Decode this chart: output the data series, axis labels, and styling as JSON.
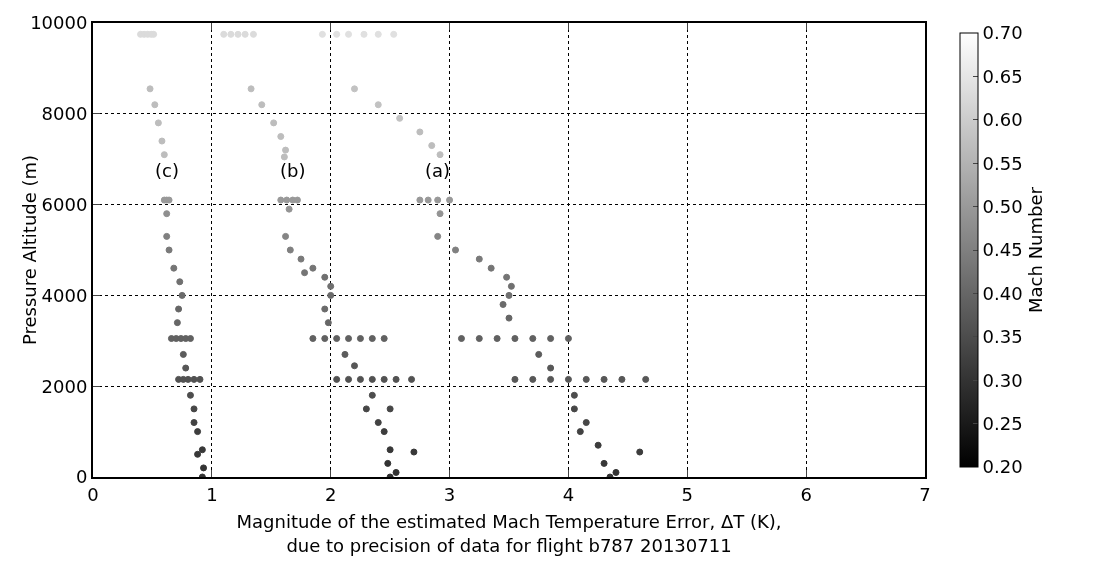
{
  "chart_data": {
    "type": "scatter",
    "xlabel": "Magnitude of the estimated Mach Temperature Error, ΔT (K),\ndue to precision of data for flight b787 20130711",
    "ylabel": "Pressure Altitude (m)",
    "clabel": "Mach Number",
    "xlim": [
      0,
      7
    ],
    "xticks": [
      0,
      1,
      2,
      3,
      4,
      5,
      6,
      7
    ],
    "ylim": [
      0,
      10000
    ],
    "yticks": [
      0,
      2000,
      4000,
      6000,
      8000,
      10000
    ],
    "clim": [
      0.2,
      0.7
    ],
    "cticks": [
      {
        "value": 0.2,
        "label": "0.20"
      },
      0.25,
      {
        "value": 0.3,
        "label": "0.30"
      },
      0.35,
      {
        "value": 0.4,
        "label": "0.40"
      },
      0.45,
      {
        "value": 0.5,
        "label": "0.50"
      },
      0.55,
      {
        "value": 0.6,
        "label": "0.60"
      },
      0.65,
      {
        "value": 0.7,
        "label": "0.70"
      }
    ],
    "grid": true,
    "marker": "circle",
    "annotations": [
      {
        "text": "(a)",
        "x": 2.9,
        "y": 6100
      },
      {
        "text": "(b)",
        "x": 1.68,
        "y": 6100
      },
      {
        "text": "(c)",
        "x": 0.62,
        "y": 6100
      }
    ],
    "series": [
      {
        "x": [
          1.93,
          2.05,
          2.15,
          2.28,
          2.4,
          2.53,
          2.2,
          2.4,
          2.58,
          2.75,
          2.85,
          2.92,
          2.75,
          2.82,
          2.9,
          3.0,
          2.92,
          2.9,
          3.05,
          3.25,
          3.35,
          3.48,
          3.52,
          3.5,
          3.45,
          3.5,
          3.1,
          3.25,
          3.4,
          3.55,
          3.7,
          3.85,
          4.0,
          3.75,
          3.85,
          3.55,
          3.7,
          3.85,
          4.0,
          4.15,
          4.3,
          4.45,
          4.65,
          4.05,
          4.05,
          4.15,
          4.1,
          4.25,
          4.6,
          4.3,
          4.4,
          4.35
        ],
        "values": [
          9750,
          9750,
          9750,
          9750,
          9750,
          9750,
          8550,
          8200,
          7900,
          7600,
          7300,
          7100,
          6100,
          6100,
          6100,
          6100,
          5800,
          5300,
          5000,
          4800,
          4600,
          4400,
          4200,
          4000,
          3800,
          3500,
          3050,
          3050,
          3050,
          3050,
          3050,
          3050,
          3050,
          2700,
          2400,
          2150,
          2150,
          2150,
          2150,
          2150,
          2150,
          2150,
          2150,
          1800,
          1500,
          1200,
          1000,
          700,
          550,
          300,
          100,
          0
        ],
        "colors": [
          "#e0e0e0",
          "#e0e0e0",
          "#e0e0e0",
          "#e0e0e0",
          "#e0e0e0",
          "#e0e0e0",
          "#c2c2c2",
          "#c2c2c2",
          "#c2c2c2",
          "#bdbdbd",
          "#bdbdbd",
          "#bdbdbd",
          "#999999",
          "#999999",
          "#999999",
          "#999999",
          "#949494",
          "#858585",
          "#808080",
          "#7a7a7a",
          "#757575",
          "#757575",
          "#707070",
          "#707070",
          "#6b6b6b",
          "#666666",
          "#616161",
          "#616161",
          "#616161",
          "#616161",
          "#616161",
          "#616161",
          "#616161",
          "#5c5c5c",
          "#575757",
          "#575757",
          "#575757",
          "#575757",
          "#575757",
          "#575757",
          "#575757",
          "#575757",
          "#575757",
          "#4d4d4d",
          "#474747",
          "#474747",
          "#424242",
          "#3d3d3d",
          "#3d3d3d",
          "#383838",
          "#333333",
          "#333333"
        ],
        "cvalues": [
          0.64,
          0.64,
          0.64,
          0.64,
          0.64,
          0.64,
          0.58,
          0.58,
          0.58,
          0.57,
          0.57,
          0.57,
          0.5,
          0.5,
          0.5,
          0.5,
          0.49,
          0.46,
          0.45,
          0.44,
          0.43,
          0.43,
          0.42,
          0.42,
          0.41,
          0.4,
          0.39,
          0.39,
          0.39,
          0.39,
          0.39,
          0.39,
          0.39,
          0.38,
          0.37,
          0.37,
          0.37,
          0.37,
          0.37,
          0.37,
          0.37,
          0.37,
          0.37,
          0.35,
          0.34,
          0.34,
          0.33,
          0.32,
          0.32,
          0.31,
          0.3,
          0.3
        ]
      },
      {
        "x": [
          1.1,
          1.16,
          1.22,
          1.28,
          1.35,
          1.33,
          1.42,
          1.52,
          1.58,
          1.62,
          1.61,
          1.58,
          1.63,
          1.68,
          1.72,
          1.65,
          1.62,
          1.66,
          1.75,
          1.85,
          1.78,
          1.95,
          2.0,
          2.0,
          1.95,
          1.98,
          1.85,
          1.95,
          2.05,
          2.15,
          2.25,
          2.35,
          2.45,
          2.12,
          2.2,
          2.05,
          2.15,
          2.25,
          2.35,
          2.45,
          2.55,
          2.68,
          2.35,
          2.3,
          2.5,
          2.4,
          2.45,
          2.5,
          2.7,
          2.48,
          2.55,
          2.5
        ],
        "values": [
          9750,
          9750,
          9750,
          9750,
          9750,
          8550,
          8200,
          7800,
          7500,
          7200,
          7050,
          6100,
          6100,
          6100,
          6100,
          5900,
          5300,
          5000,
          4800,
          4600,
          4500,
          4400,
          4200,
          4000,
          3700,
          3400,
          3050,
          3050,
          3050,
          3050,
          3050,
          3050,
          3050,
          2700,
          2450,
          2150,
          2150,
          2150,
          2150,
          2150,
          2150,
          2150,
          1800,
          1500,
          1500,
          1200,
          1000,
          600,
          550,
          300,
          100,
          0
        ],
        "colors": [
          "#dbdbdb",
          "#dbdbdb",
          "#dbdbdb",
          "#dbdbdb",
          "#dbdbdb",
          "#bdbdbd",
          "#bdbdbd",
          "#bdbdbd",
          "#bdbdbd",
          "#bdbdbd",
          "#bdbdbd",
          "#999999",
          "#999999",
          "#999999",
          "#999999",
          "#949494",
          "#858585",
          "#808080",
          "#7a7a7a",
          "#757575",
          "#757575",
          "#707070",
          "#707070",
          "#6b6b6b",
          "#6b6b6b",
          "#666666",
          "#616161",
          "#616161",
          "#616161",
          "#616161",
          "#616161",
          "#616161",
          "#616161",
          "#5c5c5c",
          "#575757",
          "#525252",
          "#525252",
          "#525252",
          "#525252",
          "#525252",
          "#525252",
          "#525252",
          "#4d4d4d",
          "#474747",
          "#474747",
          "#424242",
          "#3d3d3d",
          "#383838",
          "#383838",
          "#333333",
          "#333333",
          "#2e2e2e"
        ],
        "cvalues": [
          0.63,
          0.63,
          0.63,
          0.63,
          0.63,
          0.57,
          0.57,
          0.57,
          0.57,
          0.57,
          0.57,
          0.5,
          0.5,
          0.5,
          0.5,
          0.49,
          0.46,
          0.45,
          0.44,
          0.43,
          0.43,
          0.42,
          0.42,
          0.41,
          0.41,
          0.4,
          0.39,
          0.39,
          0.39,
          0.39,
          0.39,
          0.39,
          0.39,
          0.38,
          0.37,
          0.36,
          0.36,
          0.36,
          0.36,
          0.36,
          0.36,
          0.36,
          0.35,
          0.34,
          0.34,
          0.33,
          0.32,
          0.31,
          0.31,
          0.3,
          0.3,
          0.29
        ]
      },
      {
        "x": [
          0.4,
          0.43,
          0.46,
          0.49,
          0.51,
          0.48,
          0.52,
          0.55,
          0.58,
          0.6,
          0.6,
          0.62,
          0.64,
          0.62,
          0.62,
          0.64,
          0.68,
          0.73,
          0.75,
          0.72,
          0.71,
          0.66,
          0.7,
          0.74,
          0.78,
          0.82,
          0.76,
          0.78,
          0.72,
          0.76,
          0.8,
          0.85,
          0.9,
          0.82,
          0.85,
          0.85,
          0.88,
          0.92,
          0.88,
          0.93,
          0.92
        ],
        "values": [
          9750,
          9750,
          9750,
          9750,
          9750,
          8550,
          8200,
          7800,
          7400,
          7100,
          6100,
          6100,
          6100,
          5800,
          5300,
          5000,
          4600,
          4300,
          4000,
          3700,
          3400,
          3050,
          3050,
          3050,
          3050,
          3050,
          2700,
          2400,
          2150,
          2150,
          2150,
          2150,
          2150,
          1800,
          1500,
          1200,
          1000,
          600,
          500,
          200,
          0
        ],
        "colors": [
          "#dbdbdb",
          "#dbdbdb",
          "#dbdbdb",
          "#dbdbdb",
          "#dbdbdb",
          "#bdbdbd",
          "#bdbdbd",
          "#bdbdbd",
          "#bdbdbd",
          "#bdbdbd",
          "#999999",
          "#999999",
          "#999999",
          "#8f8f8f",
          "#808080",
          "#7a7a7a",
          "#757575",
          "#707070",
          "#6b6b6b",
          "#666666",
          "#666666",
          "#616161",
          "#616161",
          "#616161",
          "#616161",
          "#616161",
          "#5c5c5c",
          "#575757",
          "#525252",
          "#525252",
          "#525252",
          "#525252",
          "#525252",
          "#4d4d4d",
          "#474747",
          "#424242",
          "#3d3d3d",
          "#383838",
          "#383838",
          "#333333",
          "#333333"
        ],
        "cvalues": [
          0.63,
          0.63,
          0.63,
          0.63,
          0.63,
          0.57,
          0.57,
          0.57,
          0.57,
          0.57,
          0.5,
          0.5,
          0.5,
          0.48,
          0.45,
          0.44,
          0.43,
          0.42,
          0.41,
          0.4,
          0.4,
          0.39,
          0.39,
          0.39,
          0.39,
          0.39,
          0.38,
          0.37,
          0.36,
          0.36,
          0.36,
          0.36,
          0.36,
          0.35,
          0.34,
          0.33,
          0.32,
          0.31,
          0.31,
          0.3,
          0.3
        ]
      }
    ]
  }
}
